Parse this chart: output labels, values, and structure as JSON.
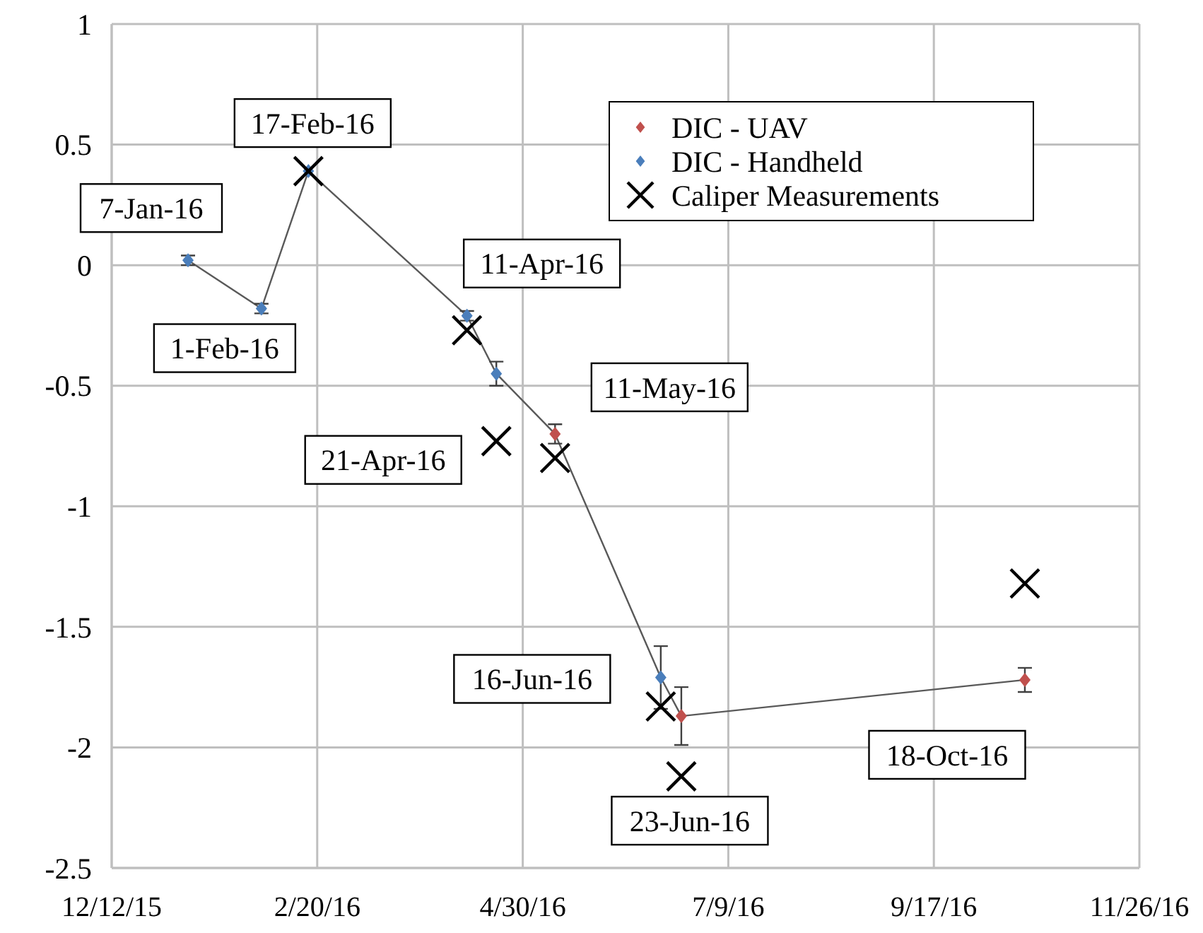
{
  "chart_data": {
    "type": "scatter",
    "xlim": [
      "2015-12-12",
      "2016-11-26"
    ],
    "xticks": [
      {
        "value": "2015-12-12",
        "label": "12/12/15"
      },
      {
        "value": "2016-02-20",
        "label": "2/20/16"
      },
      {
        "value": "2016-04-30",
        "label": "4/30/16"
      },
      {
        "value": "2016-07-09",
        "label": "7/9/16"
      },
      {
        "value": "2016-09-17",
        "label": "9/17/16"
      },
      {
        "value": "2016-11-26",
        "label": "11/26/16"
      }
    ],
    "ylim": [
      -2.5,
      1
    ],
    "yticks": [
      -2.5,
      -2,
      -1.5,
      -1,
      -0.5,
      0,
      0.5,
      1
    ],
    "grid": true,
    "legend": "top right",
    "series": [
      {
        "type": "line",
        "color": "#595959",
        "line_style": "solid",
        "x": [
          "2016-01-07",
          "2016-02-01",
          "2016-02-17",
          "2016-04-11",
          "2016-04-21",
          "2016-05-11",
          "2016-06-16",
          "2016-06-23",
          "2016-10-18"
        ],
        "values": [
          0.02,
          -0.18,
          0.39,
          -0.21,
          -0.45,
          -0.7,
          -1.71,
          -1.87,
          -1.72
        ]
      },
      {
        "name": "DIC - UAV",
        "color": "#c0504d",
        "marker": "diamond",
        "x": [
          "2016-05-11",
          "2016-06-23",
          "2016-10-18"
        ],
        "values": [
          -0.7,
          -1.87,
          -1.72
        ],
        "errors": [
          0.04,
          0.12,
          0.05
        ]
      },
      {
        "name": "DIC - Handheld",
        "color": "#4a7ebb",
        "marker": "diamond",
        "x": [
          "2016-01-07",
          "2016-02-01",
          "2016-02-17",
          "2016-04-11",
          "2016-04-21",
          "2016-06-16"
        ],
        "values": [
          0.02,
          -0.18,
          0.39,
          -0.21,
          -0.45,
          -1.71
        ],
        "errors": [
          0.02,
          0.02,
          null,
          0.02,
          0.05,
          0.13
        ]
      },
      {
        "name": "Caliper Measurements",
        "color": "#000000",
        "marker": "cross",
        "x": [
          "2016-02-17",
          "2016-04-11",
          "2016-04-21",
          "2016-05-11",
          "2016-06-16",
          "2016-06-23",
          "2016-10-18"
        ],
        "values": [
          0.39,
          -0.27,
          -0.73,
          -0.8,
          -1.83,
          -2.12,
          -1.32
        ]
      }
    ],
    "annotations": [
      {
        "text": "7-Jan-16",
        "x": "2016-01-07",
        "y": 0.02
      },
      {
        "text": "1-Feb-16",
        "x": "2016-02-01",
        "y": -0.18
      },
      {
        "text": "17-Feb-16",
        "x": "2016-02-17",
        "y": 0.39
      },
      {
        "text": "11-Apr-16",
        "x": "2016-04-11",
        "y": -0.21
      },
      {
        "text": "21-Apr-16",
        "x": "2016-04-21",
        "y": -0.45
      },
      {
        "text": "11-May-16",
        "x": "2016-05-11",
        "y": -0.7
      },
      {
        "text": "16-Jun-16",
        "x": "2016-06-16",
        "y": -1.71
      },
      {
        "text": "23-Jun-16",
        "x": "2016-06-23",
        "y": -1.87
      },
      {
        "text": "18-Oct-16",
        "x": "2016-10-18",
        "y": -1.72
      }
    ]
  }
}
